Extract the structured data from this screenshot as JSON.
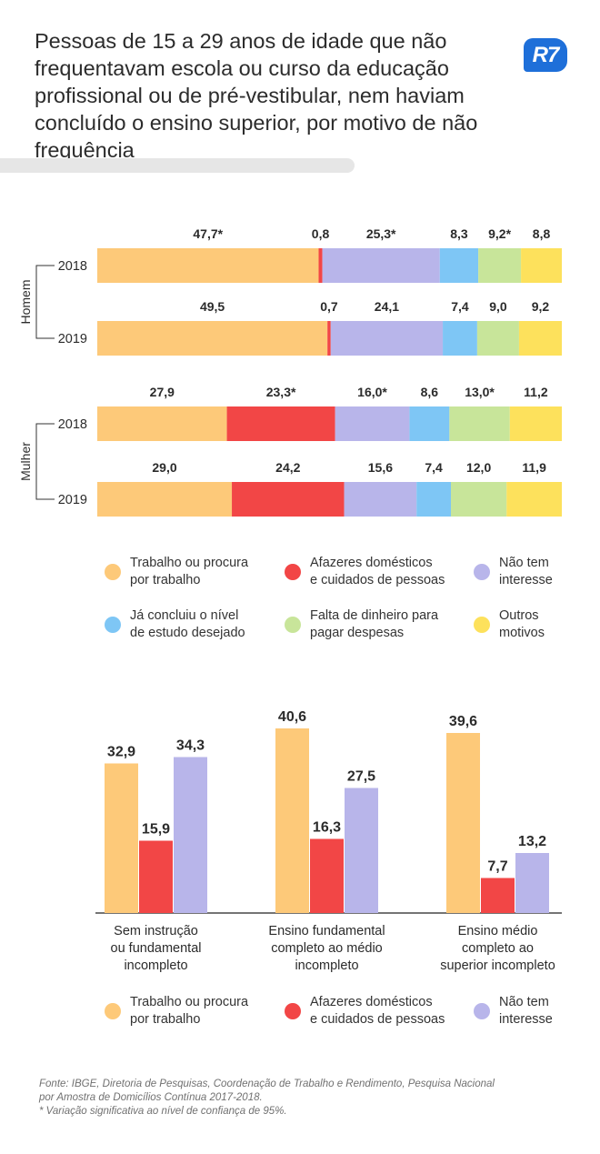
{
  "header": {
    "title": "Pessoas de 15 a 29 anos de idade que não frequentavam escola ou curso da educação profissional ou de pré-vestibular, nem haviam concluído o ensino superior, por motivo de não frequência",
    "logo": "R7",
    "logo_color": "#1e6fd9"
  },
  "chart_data": [
    {
      "type": "bar",
      "orientation": "horizontal",
      "stacked": true,
      "unit": "%",
      "groups": [
        {
          "name": "Homem",
          "rows": [
            {
              "year": "2018",
              "values": [
                47.7,
                0.8,
                25.3,
                8.3,
                9.2,
                8.8
              ],
              "labels": [
                "47,7*",
                "0,8",
                "25,3*",
                "8,3",
                "9,2*",
                "8,8"
              ]
            },
            {
              "year": "2019",
              "values": [
                49.5,
                0.7,
                24.1,
                7.4,
                9.0,
                9.2
              ],
              "labels": [
                "49,5",
                "0,7",
                "24,1",
                "7,4",
                "9,0",
                "9,2"
              ]
            }
          ]
        },
        {
          "name": "Mulher",
          "rows": [
            {
              "year": "2018",
              "values": [
                27.9,
                23.3,
                16.0,
                8.6,
                13.0,
                11.2
              ],
              "labels": [
                "27,9",
                "23,3*",
                "16,0*",
                "8,6",
                "13,0*",
                "11,2"
              ]
            },
            {
              "year": "2019",
              "values": [
                29.0,
                24.2,
                15.6,
                7.4,
                12.0,
                11.9
              ],
              "labels": [
                "29,0",
                "24,2",
                "15,6",
                "7,4",
                "12,0",
                "11,9"
              ]
            }
          ]
        }
      ],
      "series": [
        {
          "name": "Trabalho ou procura\npor trabalho",
          "color": "#fdc979"
        },
        {
          "name": "Afazeres domésticos\ne cuidados de pessoas",
          "color": "#f24646"
        },
        {
          "name": "Não tem\ninteresse",
          "color": "#b8b5ea"
        },
        {
          "name": "Já concluiu o nível\nde estudo desejado",
          "color": "#7ec6f5"
        },
        {
          "name": "Falta de dinheiro para\npagar despesas",
          "color": "#c8e59a"
        },
        {
          "name": "Outros\nmotivos",
          "color": "#fde15c"
        }
      ],
      "legend": "bottom"
    },
    {
      "type": "bar",
      "orientation": "vertical",
      "unit": "%",
      "categories": [
        "Sem instrução\nou fundamental\nincompleto",
        "Ensino fundamental\ncompleto ao médio\nincompleto",
        "Ensino médio\ncompleto ao\nsuperior incompleto"
      ],
      "series": [
        {
          "name": "Trabalho ou procura\npor trabalho",
          "color": "#fdc979",
          "values": [
            32.9,
            40.6,
            39.6
          ],
          "labels": [
            "32,9",
            "40,6",
            "39,6"
          ]
        },
        {
          "name": "Afazeres domésticos\ne cuidados de pessoas",
          "color": "#f24646",
          "values": [
            15.9,
            16.3,
            7.7
          ],
          "labels": [
            "15,9",
            "16,3",
            "7,7"
          ]
        },
        {
          "name": "Não tem\ninteresse",
          "color": "#b8b5ea",
          "values": [
            34.3,
            27.5,
            13.2
          ],
          "labels": [
            "34,3",
            "27,5",
            "13,2"
          ]
        }
      ],
      "ylim": [
        0,
        42
      ],
      "legend": "bottom"
    }
  ],
  "source": {
    "line1": "Fonte: IBGE, Diretoria de Pesquisas, Coordenação de Trabalho e Rendimento, Pesquisa Nacional por Amostra de Domicílios Contínua 2017-2018.",
    "line2": "* Variação significativa ao nível de confiança de 95%."
  }
}
